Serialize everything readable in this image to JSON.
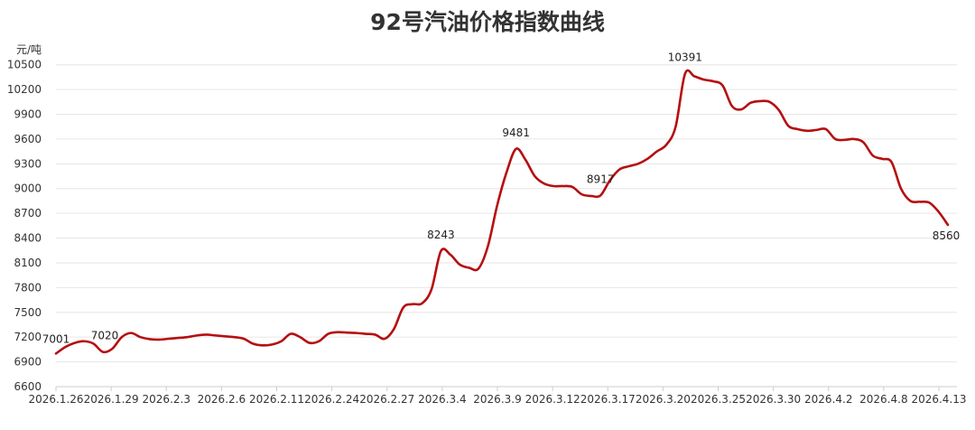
{
  "chart_data": {
    "type": "line",
    "title": "92号汽油价格指数曲线",
    "ylabel": "元/吨",
    "xlabel": "",
    "ylim": [
      6600,
      10650
    ],
    "yticks": [
      6600,
      6900,
      7200,
      7500,
      7800,
      8100,
      8400,
      8700,
      9000,
      9300,
      9600,
      9900,
      10200,
      10500
    ],
    "grid": true,
    "line_color": "#b50f10",
    "x_tick_labels": [
      "2026.1.26",
      "2026.1.29",
      "2026.2.3",
      "2026.2.6",
      "2026.2.11",
      "2026.2.24",
      "2026.2.27",
      "2026.3.4",
      "2026.3.9",
      "2026.3.12",
      "2026.3.17",
      "2026.3.20",
      "2026.3.25",
      "2026.3.30",
      "2026.4.2",
      "2026.4.8",
      "2026.4.13"
    ],
    "series": [
      {
        "values": [
          7001,
          7080,
          7130,
          7150,
          7120,
          7020,
          7060,
          7200,
          7250,
          7200,
          7175,
          7170,
          7180,
          7190,
          7200,
          7220,
          7230,
          7220,
          7210,
          7200,
          7180,
          7120,
          7100,
          7110,
          7150,
          7240,
          7200,
          7130,
          7150,
          7240,
          7260,
          7255,
          7250,
          7240,
          7230,
          7180,
          7300,
          7560,
          7600,
          7610,
          7780,
          8243,
          8200,
          8080,
          8040,
          8030,
          8300,
          8800,
          9200,
          9481,
          9350,
          9150,
          9060,
          9030,
          9030,
          9020,
          8930,
          8910,
          8917,
          9100,
          9230,
          9270,
          9300,
          9360,
          9450,
          9530,
          9750,
          10391,
          10360,
          10320,
          10300,
          10250,
          10000,
          9960,
          10040,
          10060,
          10050,
          9950,
          9760,
          9720,
          9700,
          9710,
          9720,
          9600,
          9590,
          9600,
          9560,
          9400,
          9360,
          9320,
          9000,
          8850,
          8840,
          8830,
          8720,
          8560
        ]
      }
    ],
    "data_labels": [
      {
        "index": 0,
        "text": "7001"
      },
      {
        "index": 5,
        "text": "7020"
      },
      {
        "index": 41,
        "text": "8243"
      },
      {
        "index": 49,
        "text": "9481"
      },
      {
        "index": 58,
        "text": "8917"
      },
      {
        "index": 67,
        "text": "10391"
      },
      {
        "index": 95,
        "text": "8560"
      }
    ]
  }
}
